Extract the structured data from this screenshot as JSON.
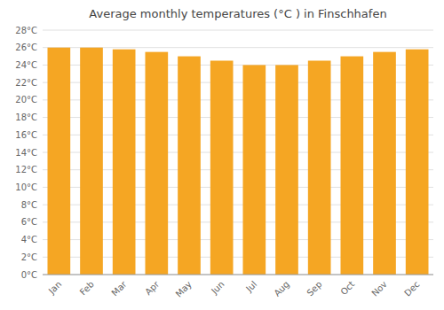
{
  "chart_data": {
    "type": "bar",
    "title": "Average monthly temperatures (°C ) in Finschhafen",
    "categories": [
      "Jan",
      "Feb",
      "Mar",
      "Apr",
      "May",
      "Jun",
      "Jul",
      "Aug",
      "Sep",
      "Oct",
      "Nov",
      "Dec"
    ],
    "values": [
      26.0,
      26.0,
      25.8,
      25.5,
      25.0,
      24.5,
      24.0,
      24.0,
      24.5,
      25.0,
      25.5,
      25.8
    ],
    "color": "#F5A623",
    "ylim": [
      0,
      28
    ],
    "yticks": [
      {
        "value": 0,
        "label": "0°C"
      },
      {
        "value": 2,
        "label": "2°C"
      },
      {
        "value": 4,
        "label": "4°C"
      },
      {
        "value": 6,
        "label": "6°C"
      },
      {
        "value": 8,
        "label": "8°C"
      },
      {
        "value": 10,
        "label": "10°C"
      },
      {
        "value": 12,
        "label": "12°C"
      },
      {
        "value": 14,
        "label": "14°C"
      },
      {
        "value": 16,
        "label": "16°C"
      },
      {
        "value": 18,
        "label": "18°C"
      },
      {
        "value": 20,
        "label": "20°C"
      },
      {
        "value": 22,
        "label": "22°C"
      },
      {
        "value": 24,
        "label": "24°C"
      },
      {
        "value": 26,
        "label": "26°C"
      },
      {
        "value": 28,
        "label": "28°C"
      }
    ],
    "grid": true
  }
}
